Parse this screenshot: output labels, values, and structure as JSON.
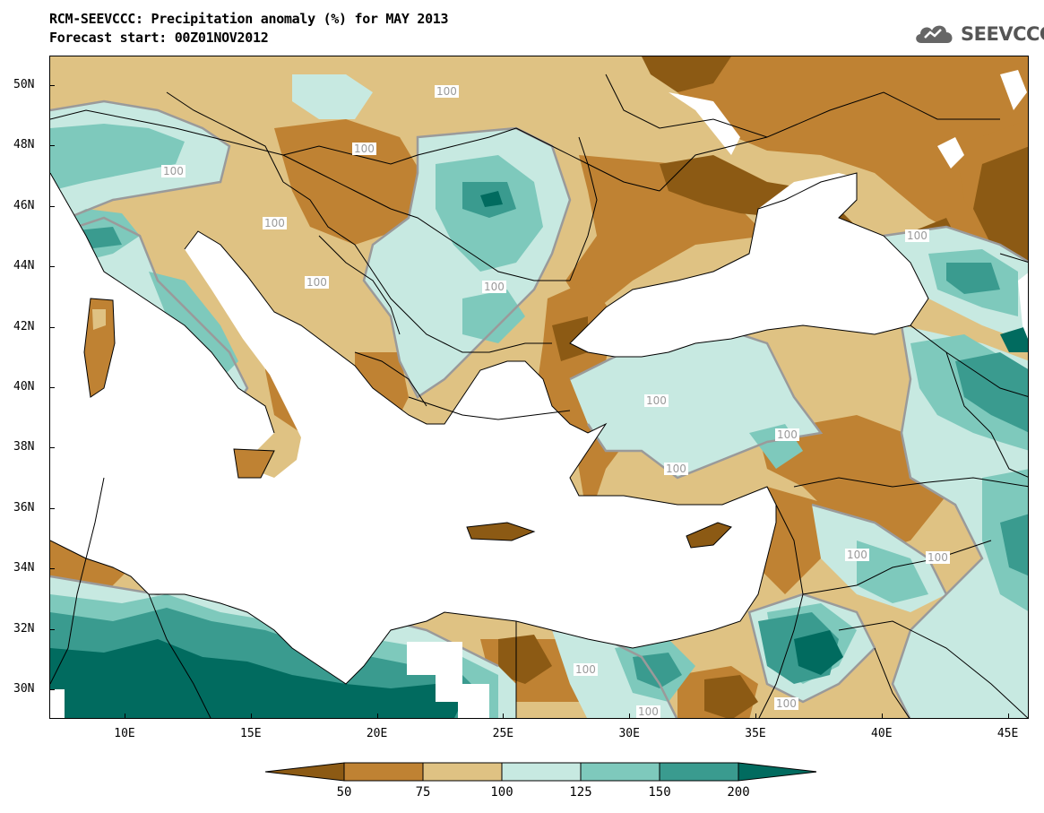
{
  "header": {
    "title_line1": "RCM-SEEVCCC: Precipitation anomaly (%) for MAY 2013",
    "title_line2": "Forecast start: 00Z01NOV2012"
  },
  "logo": {
    "text": "SEEVCCC",
    "icon": "cloud-icon"
  },
  "map": {
    "lat_labels": [
      "50N",
      "48N",
      "46N",
      "44N",
      "42N",
      "40N",
      "38N",
      "36N",
      "34N",
      "32N",
      "30N"
    ],
    "lon_labels": [
      "10E",
      "15E",
      "20E",
      "25E",
      "30E",
      "35E",
      "40E",
      "45E"
    ],
    "contour_label_text": "100",
    "contour_label_count": 14
  },
  "legend": {
    "labels": [
      "50",
      "75",
      "100",
      "125",
      "150",
      "200"
    ],
    "colors": [
      "#8c5a14",
      "#bf8233",
      "#dfc283",
      "#c7e9e1",
      "#7ec9bc",
      "#3a9b8f",
      "#016b5f"
    ]
  },
  "colors": {
    "sea": "#ffffff",
    "contour_line": "#9a9a9a",
    "border_line": "#000000"
  }
}
